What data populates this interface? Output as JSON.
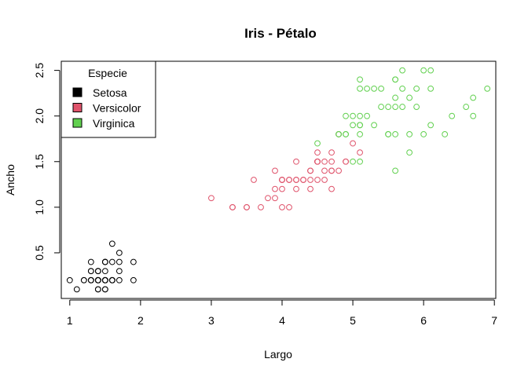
{
  "chart_data": {
    "type": "scatter",
    "title": "Iris - Pétalo",
    "xlabel": "Largo",
    "ylabel": "Ancho",
    "xlim": [
      0.88,
      7.02
    ],
    "ylim": [
      0.0,
      2.6
    ],
    "xticks": [
      "1",
      "2",
      "3",
      "4",
      "5",
      "6",
      "7"
    ],
    "yticks": [
      "0.5",
      "1.0",
      "1.5",
      "2.0",
      "2.5"
    ],
    "grid": false,
    "legend": {
      "title": "Especie",
      "placement": "top-left"
    },
    "series": [
      {
        "name": "Setosa",
        "color": "#000000",
        "x": [
          1.4,
          1.4,
          1.3,
          1.5,
          1.4,
          1.7,
          1.4,
          1.5,
          1.4,
          1.5,
          1.5,
          1.6,
          1.4,
          1.1,
          1.2,
          1.5,
          1.3,
          1.4,
          1.7,
          1.5,
          1.7,
          1.5,
          1.0,
          1.7,
          1.9,
          1.6,
          1.6,
          1.5,
          1.4,
          1.6,
          1.6,
          1.5,
          1.5,
          1.4,
          1.5,
          1.2,
          1.3,
          1.4,
          1.3,
          1.5,
          1.3,
          1.3,
          1.3,
          1.6,
          1.9,
          1.4,
          1.6,
          1.4,
          1.5,
          1.4
        ],
        "y": [
          0.2,
          0.2,
          0.2,
          0.2,
          0.2,
          0.4,
          0.3,
          0.2,
          0.2,
          0.1,
          0.2,
          0.2,
          0.1,
          0.1,
          0.2,
          0.4,
          0.4,
          0.3,
          0.3,
          0.3,
          0.2,
          0.4,
          0.2,
          0.5,
          0.2,
          0.2,
          0.4,
          0.2,
          0.2,
          0.2,
          0.2,
          0.4,
          0.1,
          0.2,
          0.2,
          0.2,
          0.2,
          0.1,
          0.2,
          0.2,
          0.3,
          0.3,
          0.2,
          0.6,
          0.4,
          0.3,
          0.2,
          0.2,
          0.2,
          0.2
        ]
      },
      {
        "name": "Versicolor",
        "color": "#DF536B",
        "x": [
          4.7,
          4.5,
          4.9,
          4.0,
          4.6,
          4.5,
          4.7,
          3.3,
          4.6,
          3.9,
          3.5,
          4.2,
          4.0,
          4.7,
          3.6,
          4.4,
          4.5,
          4.1,
          4.5,
          3.9,
          4.8,
          4.0,
          4.9,
          4.7,
          4.3,
          4.4,
          4.8,
          5.0,
          4.5,
          3.5,
          3.8,
          3.7,
          3.9,
          5.1,
          4.5,
          4.5,
          4.7,
          4.4,
          4.1,
          4.0,
          4.4,
          4.6,
          4.0,
          3.3,
          4.2,
          4.2,
          4.2,
          4.3,
          3.0,
          4.1
        ],
        "y": [
          1.4,
          1.5,
          1.5,
          1.3,
          1.5,
          1.3,
          1.6,
          1.0,
          1.3,
          1.4,
          1.0,
          1.5,
          1.0,
          1.4,
          1.3,
          1.4,
          1.5,
          1.0,
          1.5,
          1.1,
          1.8,
          1.3,
          1.5,
          1.2,
          1.3,
          1.4,
          1.4,
          1.7,
          1.5,
          1.0,
          1.1,
          1.0,
          1.2,
          1.6,
          1.5,
          1.6,
          1.5,
          1.3,
          1.3,
          1.3,
          1.2,
          1.4,
          1.2,
          1.0,
          1.3,
          1.2,
          1.3,
          1.3,
          1.1,
          1.3
        ]
      },
      {
        "name": "Virginica",
        "color": "#61D04F",
        "x": [
          6.0,
          5.1,
          5.9,
          5.6,
          5.8,
          6.6,
          4.5,
          6.3,
          5.8,
          6.1,
          5.1,
          5.3,
          5.5,
          5.0,
          5.1,
          5.3,
          5.5,
          6.7,
          6.9,
          5.0,
          5.7,
          4.9,
          6.7,
          4.9,
          5.7,
          6.0,
          4.8,
          4.9,
          5.6,
          5.8,
          6.1,
          6.4,
          5.6,
          5.1,
          5.6,
          6.1,
          5.6,
          5.5,
          4.8,
          5.4,
          5.6,
          5.1,
          5.1,
          5.9,
          5.7,
          5.2,
          5.0,
          5.2,
          5.4,
          5.1
        ],
        "y": [
          2.5,
          1.9,
          2.1,
          1.8,
          2.2,
          2.1,
          1.7,
          1.8,
          1.8,
          2.5,
          2.0,
          1.9,
          2.1,
          2.0,
          2.4,
          2.3,
          1.8,
          2.2,
          2.3,
          1.5,
          2.3,
          2.0,
          2.0,
          1.8,
          2.1,
          1.8,
          1.8,
          1.8,
          2.1,
          1.6,
          1.9,
          2.0,
          2.2,
          1.5,
          1.4,
          2.3,
          2.4,
          1.8,
          1.8,
          2.1,
          2.4,
          2.3,
          1.9,
          2.3,
          2.5,
          2.3,
          1.9,
          2.0,
          2.3,
          1.8
        ]
      }
    ]
  }
}
